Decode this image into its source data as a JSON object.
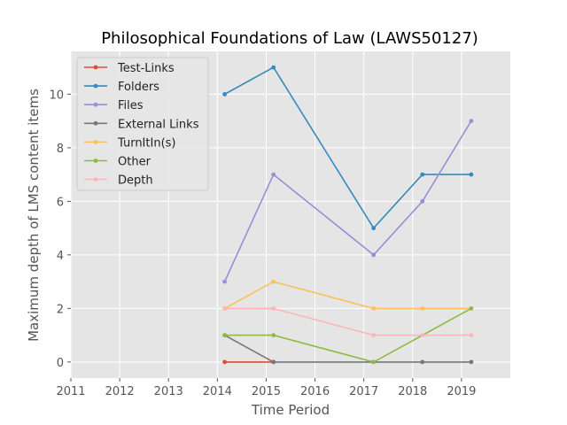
{
  "chart_data": {
    "type": "line",
    "title": "Philosophical Foundations of Law (LAWS50127)",
    "xlabel": "Time Period",
    "ylabel": "Maximum depth of LMS content items",
    "xlim": [
      2011,
      2020
    ],
    "ylim": [
      -0.6,
      11.6
    ],
    "xticks": [
      2011,
      2012,
      2013,
      2014,
      2015,
      2016,
      2017,
      2018,
      2019
    ],
    "yticks": [
      0,
      2,
      4,
      6,
      8,
      10
    ],
    "grid": true,
    "legend_position": "top-left",
    "series": [
      {
        "name": "Test-Links",
        "color": "#E24A33",
        "points": [
          [
            2014.15,
            0
          ],
          [
            2015.15,
            0
          ]
        ]
      },
      {
        "name": "Folders",
        "color": "#348ABD",
        "points": [
          [
            2014.15,
            10
          ],
          [
            2015.15,
            11
          ],
          [
            2017.2,
            5
          ],
          [
            2018.2,
            7
          ],
          [
            2019.2,
            7
          ]
        ]
      },
      {
        "name": "Files",
        "color": "#988ED5",
        "points": [
          [
            2014.15,
            3
          ],
          [
            2015.15,
            7
          ],
          [
            2017.2,
            4
          ],
          [
            2018.2,
            6
          ],
          [
            2019.2,
            9
          ]
        ]
      },
      {
        "name": "External Links",
        "color": "#777777",
        "points": [
          [
            2014.15,
            1
          ],
          [
            2015.15,
            0
          ],
          [
            2017.2,
            0
          ],
          [
            2018.2,
            0
          ],
          [
            2019.2,
            0
          ]
        ]
      },
      {
        "name": "TurnItIn(s)",
        "color": "#FBC15E",
        "points": [
          [
            2014.15,
            2
          ],
          [
            2015.15,
            3
          ],
          [
            2017.2,
            2
          ],
          [
            2018.2,
            2
          ],
          [
            2019.2,
            2
          ]
        ]
      },
      {
        "name": "Other",
        "color": "#8EBA42",
        "points": [
          [
            2014.15,
            1
          ],
          [
            2015.15,
            1
          ],
          [
            2017.2,
            0
          ],
          [
            2019.2,
            2
          ]
        ]
      },
      {
        "name": "Depth",
        "color": "#FFB5B8",
        "points": [
          [
            2014.15,
            2
          ],
          [
            2015.15,
            2
          ],
          [
            2017.2,
            1
          ],
          [
            2018.2,
            1
          ],
          [
            2019.2,
            1
          ]
        ]
      }
    ]
  }
}
